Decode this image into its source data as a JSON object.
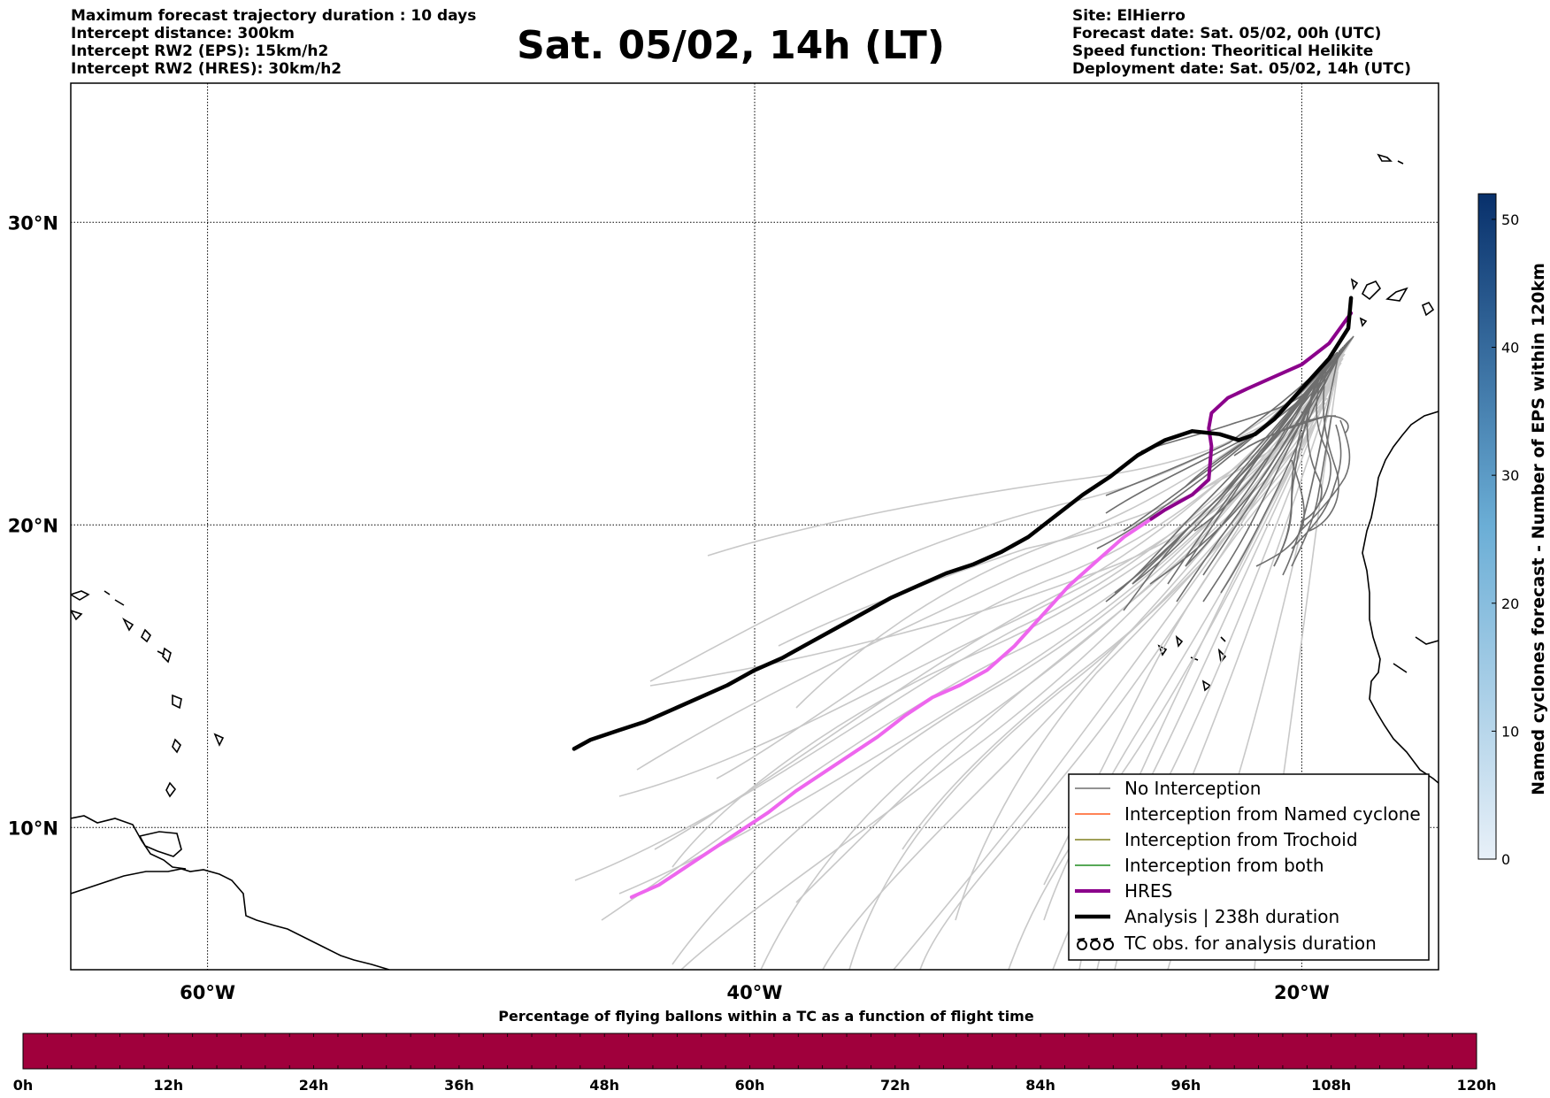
{
  "title": "Sat. 05/02, 14h (LT)",
  "info_left": [
    "Maximum forecast trajectory duration : 10 days",
    "Intercept distance: 300km",
    "Intercept RW2 (EPS):  15km/h2",
    "Intercept RW2 (HRES): 30km/h2"
  ],
  "info_right": [
    "Site: ElHierro",
    "Forecast date: Sat. 05/02, 00h (UTC)",
    "Speed function: Theoritical Helikite",
    "Deployment date: Sat. 05/02, 14h (UTC)"
  ],
  "map": {
    "lon_range": [
      -65,
      -15
    ],
    "lat_range": [
      5.3,
      34.6
    ],
    "lat_ticks": [
      {
        "value": 30,
        "label": "30°N"
      },
      {
        "value": 20,
        "label": "20°N"
      },
      {
        "value": 10,
        "label": "10°N"
      }
    ],
    "lon_ticks": [
      {
        "value": -60,
        "label": "60°W"
      },
      {
        "value": -40,
        "label": "40°W"
      },
      {
        "value": -20,
        "label": "20°W"
      }
    ],
    "grid": "dotted",
    "colors": {
      "no_interception": "#6e6e6e",
      "eps_faint": "#c8c8c8",
      "named_cyclone": "#ff5a1e",
      "trochoid": "#808020",
      "both": "#1e8c1e",
      "hres": "#8b008b",
      "hres_late": "#ee66ee",
      "analysis": "#000000"
    }
  },
  "trajectories": {
    "analysis": [
      [
        -18.2,
        27.5
      ],
      [
        -18.3,
        26.5
      ],
      [
        -19.0,
        25.5
      ],
      [
        -20.0,
        24.5
      ],
      [
        -21.0,
        23.5
      ],
      [
        -21.7,
        23.0
      ],
      [
        -22.3,
        22.8
      ],
      [
        -23.0,
        23.0
      ],
      [
        -24.0,
        23.1
      ],
      [
        -25.0,
        22.8
      ],
      [
        -26.0,
        22.3
      ],
      [
        -27.0,
        21.6
      ],
      [
        -28.0,
        21.0
      ],
      [
        -29.0,
        20.3
      ],
      [
        -30.0,
        19.6
      ],
      [
        -31.0,
        19.1
      ],
      [
        -32.0,
        18.7
      ],
      [
        -33.0,
        18.4
      ],
      [
        -34.0,
        18.0
      ],
      [
        -35.0,
        17.6
      ],
      [
        -36.0,
        17.1
      ],
      [
        -37.0,
        16.6
      ],
      [
        -38.0,
        16.1
      ],
      [
        -39.0,
        15.6
      ],
      [
        -40.0,
        15.2
      ],
      [
        -41.0,
        14.7
      ],
      [
        -42.0,
        14.3
      ],
      [
        -43.0,
        13.9
      ],
      [
        -44.0,
        13.5
      ],
      [
        -45.0,
        13.2
      ],
      [
        -46.0,
        12.9
      ],
      [
        -46.6,
        12.6
      ]
    ],
    "hres": [
      [
        -18.2,
        27.0
      ],
      [
        -19.0,
        26.0
      ],
      [
        -20.0,
        25.3
      ],
      [
        -21.0,
        24.9
      ],
      [
        -22.0,
        24.5
      ],
      [
        -22.7,
        24.2
      ],
      [
        -23.3,
        23.7
      ],
      [
        -23.4,
        23.2
      ],
      [
        -23.3,
        22.6
      ],
      [
        -23.4,
        21.5
      ],
      [
        -24.0,
        21.0
      ],
      [
        -25.0,
        20.5
      ],
      [
        -25.5,
        20.2
      ]
    ],
    "hres_late": [
      [
        -25.5,
        20.2
      ],
      [
        -26.5,
        19.6
      ],
      [
        -27.5,
        18.8
      ],
      [
        -28.5,
        18.0
      ],
      [
        -29.5,
        17.0
      ],
      [
        -30.5,
        16.0
      ],
      [
        -31.5,
        15.2
      ],
      [
        -32.5,
        14.7
      ],
      [
        -33.5,
        14.3
      ],
      [
        -34.5,
        13.7
      ],
      [
        -35.5,
        13.0
      ],
      [
        -36.5,
        12.4
      ],
      [
        -37.5,
        11.8
      ],
      [
        -38.5,
        11.2
      ],
      [
        -39.5,
        10.5
      ],
      [
        -40.5,
        9.9
      ],
      [
        -41.5,
        9.3
      ],
      [
        -42.5,
        8.7
      ],
      [
        -43.5,
        8.1
      ],
      [
        -44.5,
        7.7
      ]
    ]
  },
  "legend": [
    {
      "label": "No Interception",
      "style": "no_interception"
    },
    {
      "label": "Interception from Named cyclone",
      "style": "named_cyclone"
    },
    {
      "label": "Interception from Trochoid",
      "style": "trochoid"
    },
    {
      "label": "Interception from both",
      "style": "both"
    },
    {
      "label": "HRES",
      "style": "hres"
    },
    {
      "label": "Analysis | 238h duration",
      "style": "analysis"
    },
    {
      "label": "TC obs. for analysis duration",
      "style": "tc_obs"
    }
  ],
  "colorbar": {
    "label": "Named cyclones forecast - Number of EPS within 120km",
    "min": 0,
    "max": 52,
    "ticks": [
      "0",
      "10",
      "20",
      "30",
      "40",
      "50"
    ],
    "low_color": "#e8f0f8",
    "high_color": "#08306b"
  },
  "bottom_bar": {
    "title": "Percentage of flying ballons within a TC as a function of flight time",
    "color": "#a0003c",
    "ticks": [
      "0h",
      "12h",
      "24h",
      "36h",
      "48h",
      "60h",
      "72h",
      "84h",
      "96h",
      "108h",
      "120h"
    ]
  }
}
